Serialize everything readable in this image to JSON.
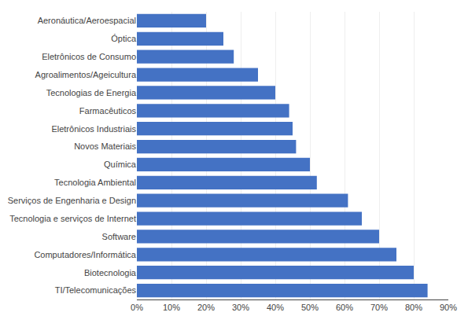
{
  "chart_data": {
    "type": "bar",
    "orientation": "horizontal",
    "categories": [
      "TI/Telecomunicações",
      "Biotecnologia",
      "Computadores/Informática",
      "Software",
      "Tecnologia e serviços de Internet",
      "Serviços de Engenharia e Design",
      "Tecnologia Ambiental",
      "Química",
      "Novos Materiais",
      "Eletrônicos Industriais",
      "Farmacêuticos",
      "Tecnologias de Energia",
      "Agroalimentos/Ageicultura",
      "Eletrônicos de Consumo",
      "Óptica",
      "Aeronáutica/Aeroespacial"
    ],
    "values": [
      0.84,
      0.8,
      0.75,
      0.7,
      0.65,
      0.61,
      0.52,
      0.5,
      0.46,
      0.45,
      0.44,
      0.4,
      0.35,
      0.28,
      0.25,
      0.2
    ],
    "color": "#4472C4",
    "xlim": [
      0,
      0.9
    ],
    "xticks": [
      {
        "value": 0.0,
        "label": "0%"
      },
      {
        "value": 0.1,
        "label": "10%"
      },
      {
        "value": 0.2,
        "label": "20%"
      },
      {
        "value": 0.3,
        "label": "30%"
      },
      {
        "value": 0.4,
        "label": "40%"
      },
      {
        "value": 0.5,
        "label": "50%"
      },
      {
        "value": 0.6,
        "label": "60%"
      },
      {
        "value": 0.7,
        "label": "70%"
      },
      {
        "value": 0.8,
        "label": "80%"
      },
      {
        "value": 0.9,
        "label": "90%"
      }
    ],
    "grid": true
  }
}
